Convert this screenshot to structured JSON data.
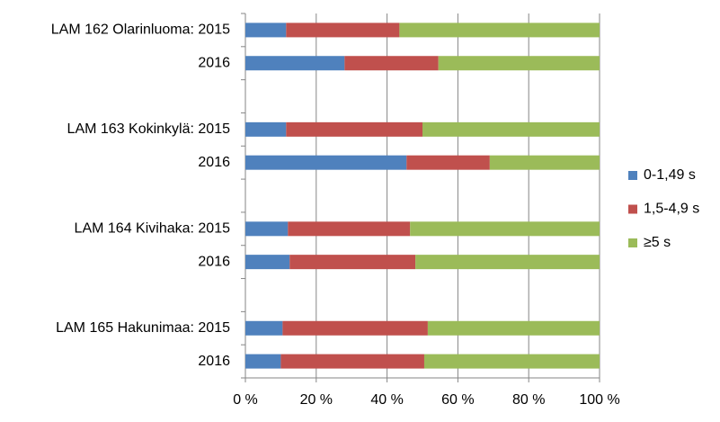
{
  "chart_data": {
    "type": "bar",
    "orientation": "horizontal",
    "stacked": true,
    "categories": [
      "LAM 162 Olarinluoma: 2015",
      "2016",
      null,
      "LAM 163 Kokinkylä: 2015",
      "2016",
      null,
      "LAM 164 Kivihaka: 2015",
      "2016",
      null,
      "LAM 165 Hakunimaa: 2015",
      "2016"
    ],
    "series": [
      {
        "name": "0-1,49 s",
        "color": "#4f81bd",
        "values": [
          11.5,
          28,
          null,
          11.5,
          45.5,
          null,
          12,
          12.5,
          null,
          10.5,
          10
        ]
      },
      {
        "name": "1,5-4,9 s",
        "color": "#c0504d",
        "values": [
          32,
          26.5,
          null,
          38.5,
          23.5,
          null,
          34.5,
          35.5,
          null,
          41,
          40.5
        ]
      },
      {
        "name": "≥5 s",
        "color": "#9bbb59",
        "values": [
          56.5,
          45.5,
          null,
          50,
          31,
          null,
          53.5,
          52,
          null,
          48.5,
          49.5
        ]
      }
    ],
    "xlim": [
      0,
      100
    ],
    "xticks": [
      {
        "value": 0,
        "label": "0 %"
      },
      {
        "value": 20,
        "label": "20 %"
      },
      {
        "value": 40,
        "label": "40 %"
      },
      {
        "value": 60,
        "label": "60 %"
      },
      {
        "value": 80,
        "label": "80 %"
      },
      {
        "value": 100,
        "label": "100 %"
      }
    ],
    "grid": true,
    "legend": "right"
  }
}
